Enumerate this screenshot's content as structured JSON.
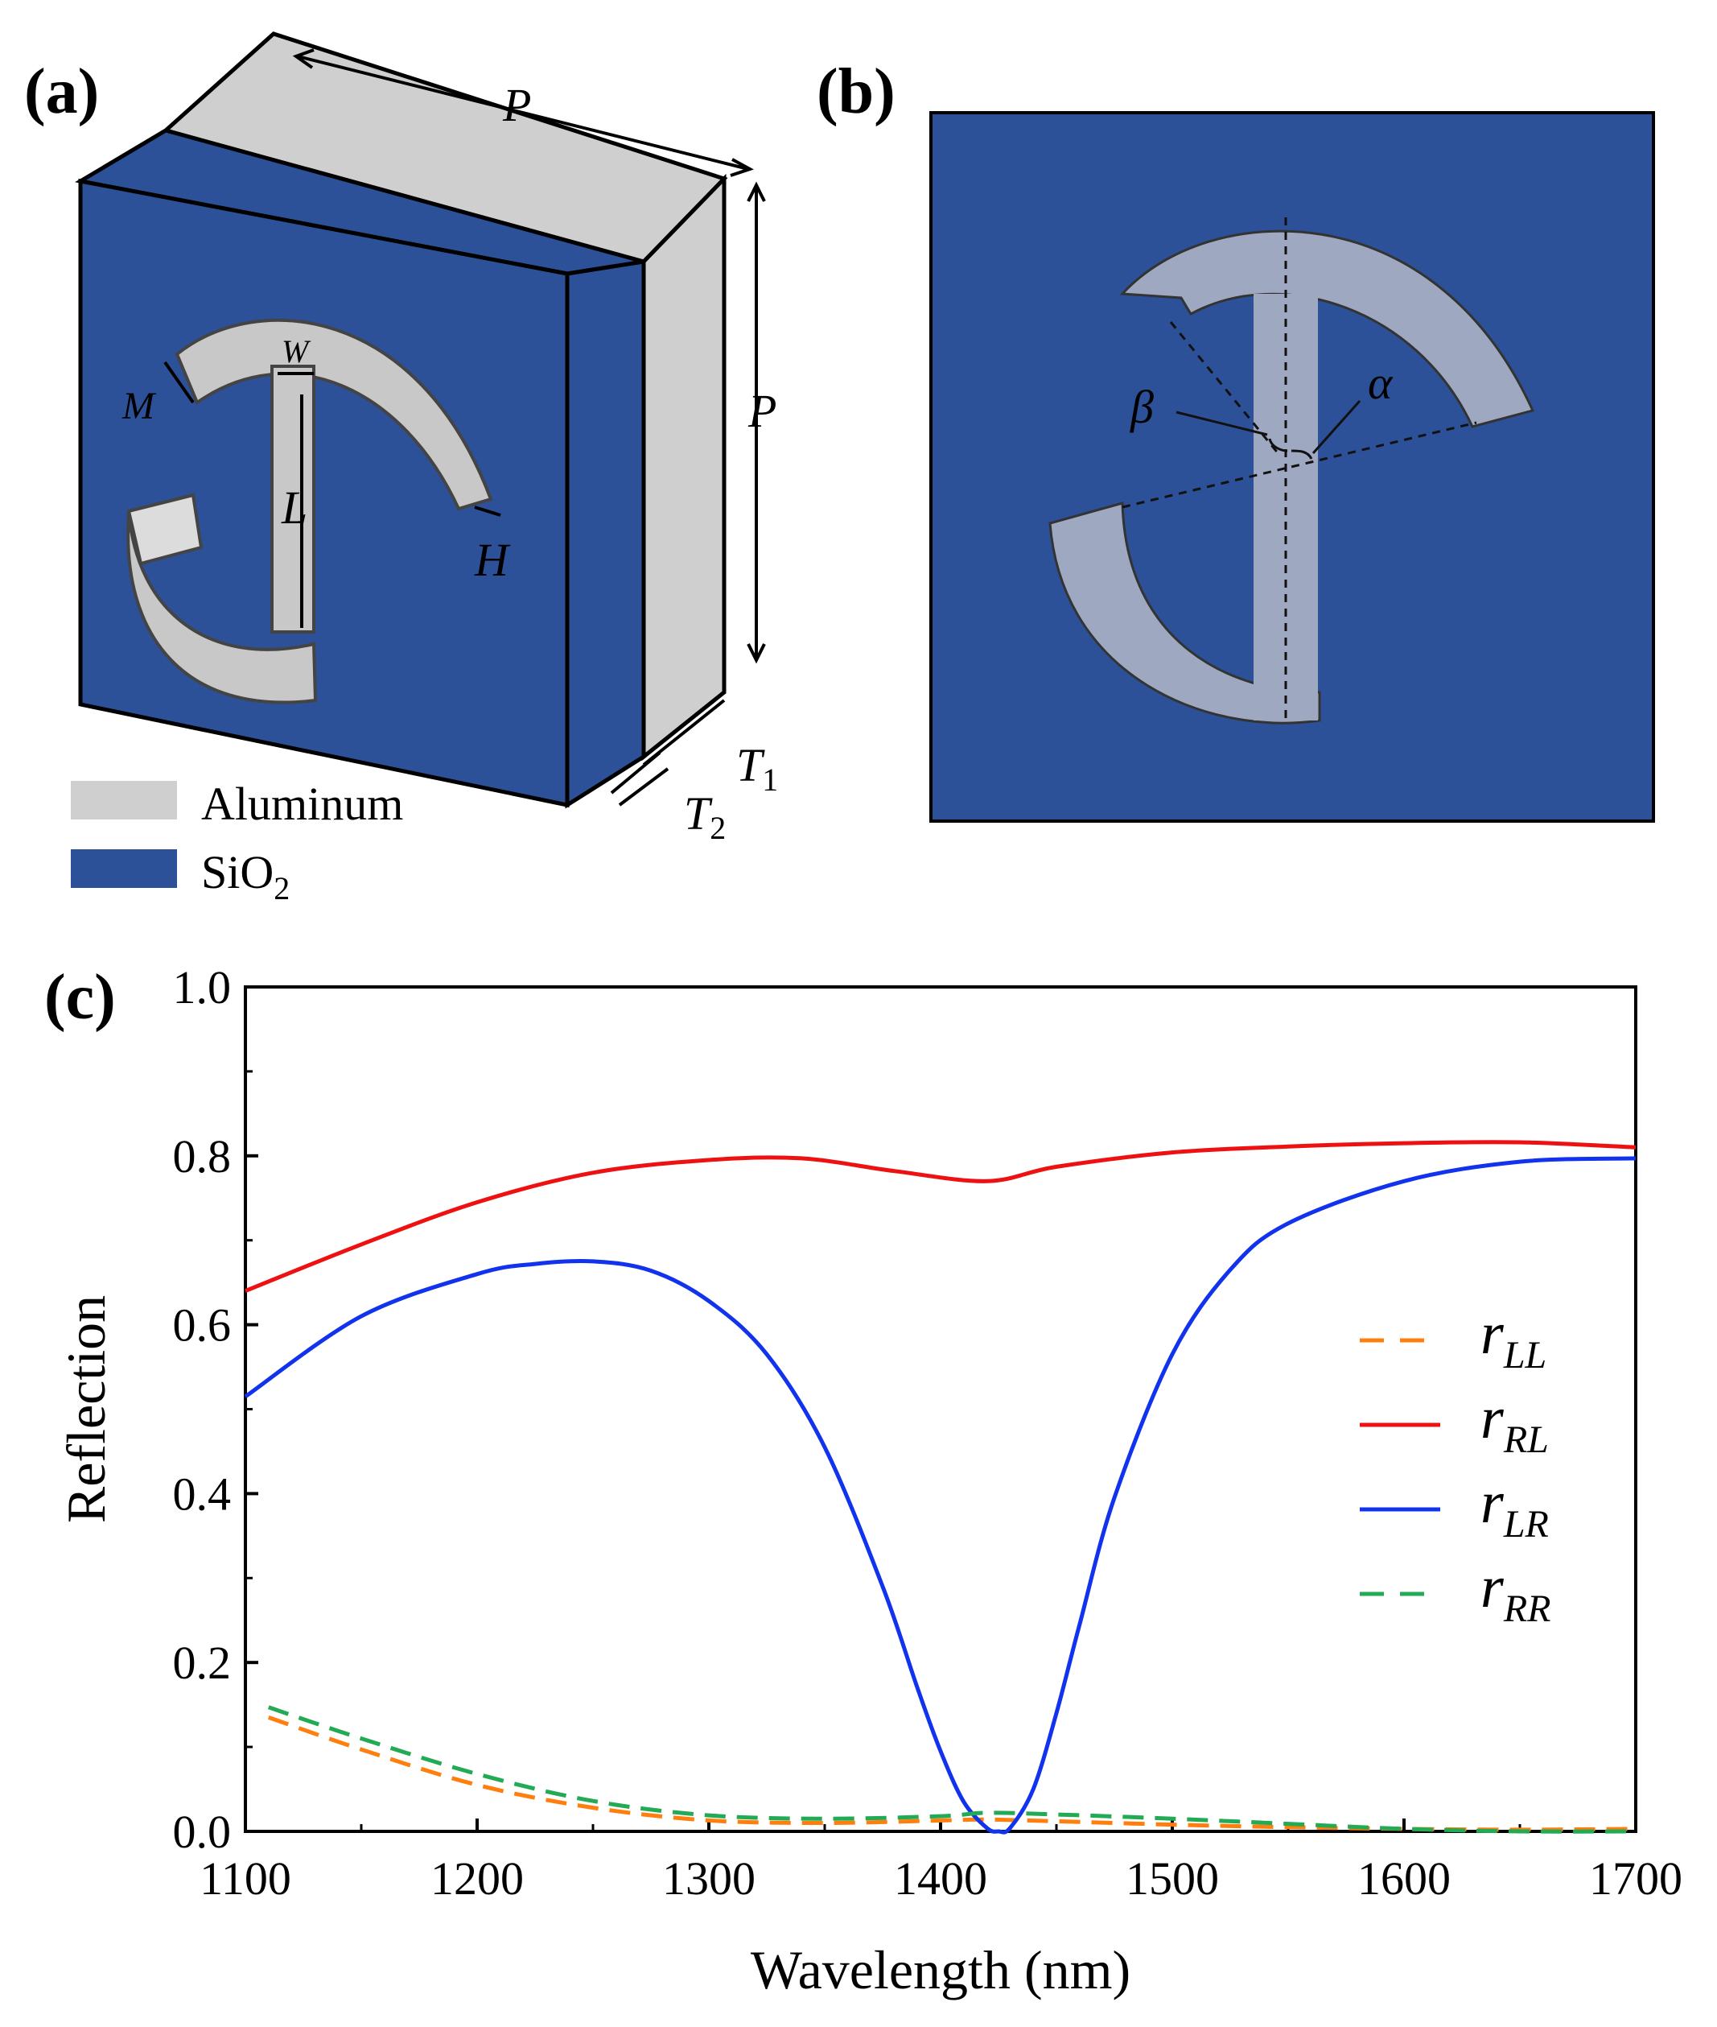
{
  "figure": {
    "panel_a": {
      "label": "(a)",
      "dims": {
        "P_top": "P",
        "P_side": "P",
        "W": "W",
        "M": "M",
        "L": "L",
        "H": "H",
        "T1": "T",
        "T1_sub": "1",
        "T2": "T",
        "T2_sub": "2"
      },
      "materials": [
        {
          "name": "Aluminum",
          "sub": "",
          "color": "#cfcfcf"
        },
        {
          "name": "SiO",
          "sub": "2",
          "color": "#2c5198"
        }
      ]
    },
    "panel_b": {
      "label": "(b)",
      "angles": {
        "beta": "β",
        "alpha": "α"
      }
    },
    "panel_c": {
      "label": "(c)"
    }
  },
  "colors": {
    "substrate": "#2c5198",
    "aluminum": "#cfcfcf",
    "resonator": "#9ea8c0"
  },
  "chart_data": {
    "type": "line",
    "xlabel": "Wavelength (nm)",
    "ylabel": "Reflection",
    "xlim": [
      1100,
      1700
    ],
    "ylim": [
      0,
      1.0
    ],
    "xticks": [
      1100,
      1200,
      1300,
      1400,
      1500,
      1600,
      1700
    ],
    "yticks": [
      0.0,
      0.2,
      0.4,
      0.6,
      0.8,
      1.0
    ],
    "ytick_labels": [
      "0.0",
      "0.2",
      "0.4",
      "0.6",
      "0.8",
      "1.0"
    ],
    "grid": false,
    "legend_position": "right",
    "series": [
      {
        "name": "r",
        "sub": "LL",
        "color": "#ff7f0e",
        "dash": true,
        "x": [
          1110,
          1150,
          1200,
          1250,
          1300,
          1350,
          1400,
          1420,
          1450,
          1500,
          1550,
          1600,
          1650,
          1700
        ],
        "y": [
          0.135,
          0.097,
          0.055,
          0.028,
          0.013,
          0.01,
          0.013,
          0.014,
          0.012,
          0.008,
          0.005,
          0.003,
          0.002,
          0.003
        ]
      },
      {
        "name": "r",
        "sub": "RL",
        "color": "#ee1111",
        "dash": false,
        "x": [
          1100,
          1150,
          1200,
          1250,
          1300,
          1340,
          1380,
          1420,
          1450,
          1500,
          1550,
          1600,
          1650,
          1700
        ],
        "y": [
          0.64,
          0.695,
          0.745,
          0.78,
          0.795,
          0.797,
          0.782,
          0.77,
          0.787,
          0.804,
          0.811,
          0.815,
          0.816,
          0.81
        ]
      },
      {
        "name": "r",
        "sub": "LR",
        "color": "#1133ee",
        "dash": false,
        "x": [
          1100,
          1150,
          1200,
          1225,
          1250,
          1275,
          1300,
          1325,
          1350,
          1375,
          1390,
          1400,
          1410,
          1420,
          1425,
          1430,
          1440,
          1450,
          1460,
          1475,
          1500,
          1525,
          1550,
          1600,
          1650,
          1700
        ],
        "y": [
          0.515,
          0.61,
          0.66,
          0.672,
          0.675,
          0.664,
          0.628,
          0.565,
          0.455,
          0.29,
          0.17,
          0.095,
          0.035,
          0.004,
          0.0,
          0.004,
          0.05,
          0.14,
          0.245,
          0.395,
          0.565,
          0.665,
          0.72,
          0.77,
          0.793,
          0.797
        ]
      },
      {
        "name": "r",
        "sub": "RR",
        "color": "#22aa55",
        "dash": true,
        "x": [
          1110,
          1150,
          1200,
          1250,
          1300,
          1350,
          1400,
          1420,
          1450,
          1500,
          1550,
          1600,
          1650,
          1700
        ],
        "y": [
          0.147,
          0.11,
          0.068,
          0.036,
          0.019,
          0.015,
          0.018,
          0.022,
          0.02,
          0.015,
          0.009,
          0.003,
          0.0,
          0.0
        ]
      }
    ]
  }
}
